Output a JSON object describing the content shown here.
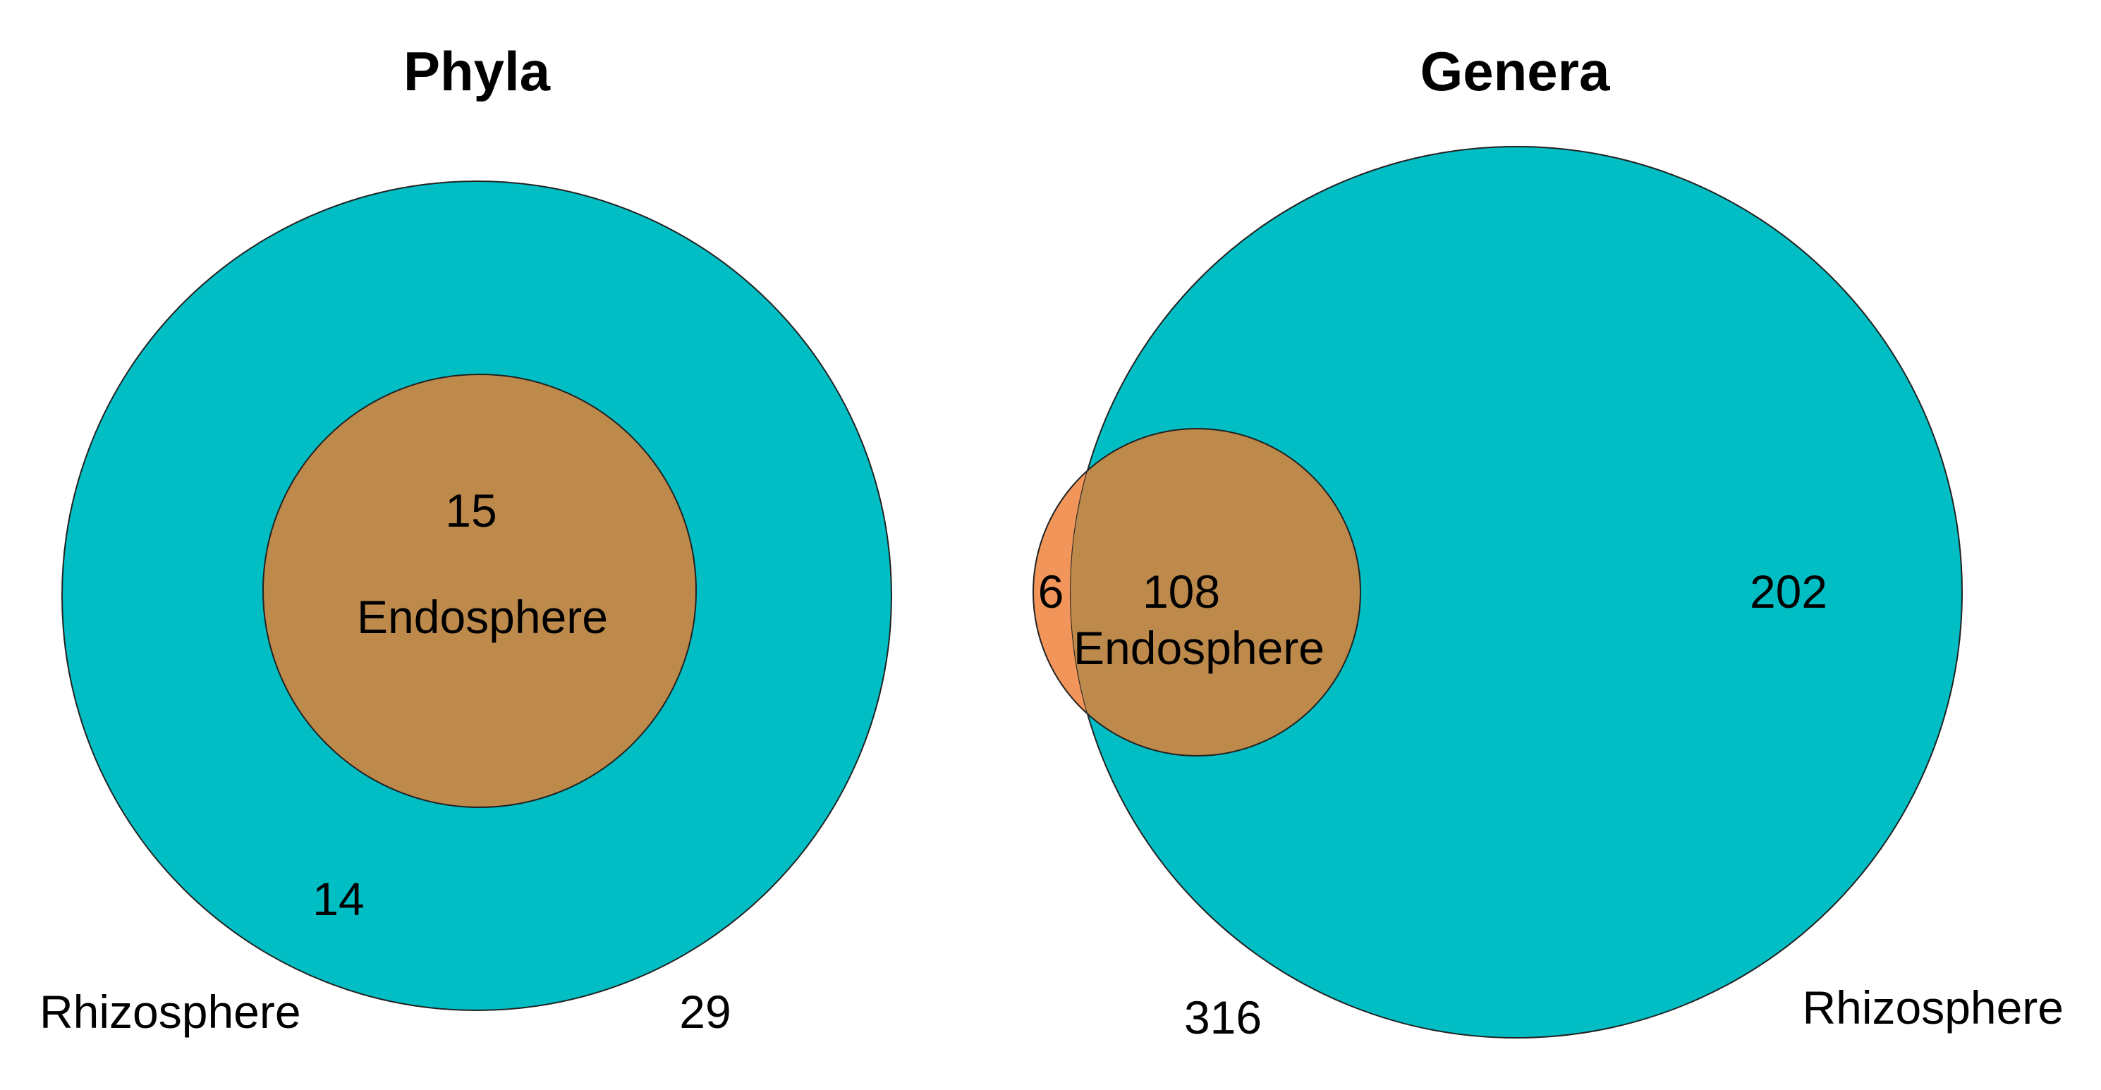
{
  "colors": {
    "rhizosphere": "#00bec4",
    "endosphere_overlap": "#bd8a4c",
    "endosphere_only": "#f2955a",
    "outline": "#222222",
    "text": "#000000"
  },
  "panels": [
    {
      "title": "Phyla",
      "sets": {
        "outer": "Rhizosphere",
        "inner": "Endosphere"
      },
      "counts": {
        "shared": "15",
        "rhizosphere_only": "14",
        "rhizosphere_total": "29"
      }
    },
    {
      "title": "Genera",
      "sets": {
        "outer": "Rhizosphere",
        "inner": "Endosphere"
      },
      "counts": {
        "endosphere_only": "6",
        "shared": "108",
        "rhizosphere_only": "202",
        "union_total": "316"
      }
    }
  ]
}
